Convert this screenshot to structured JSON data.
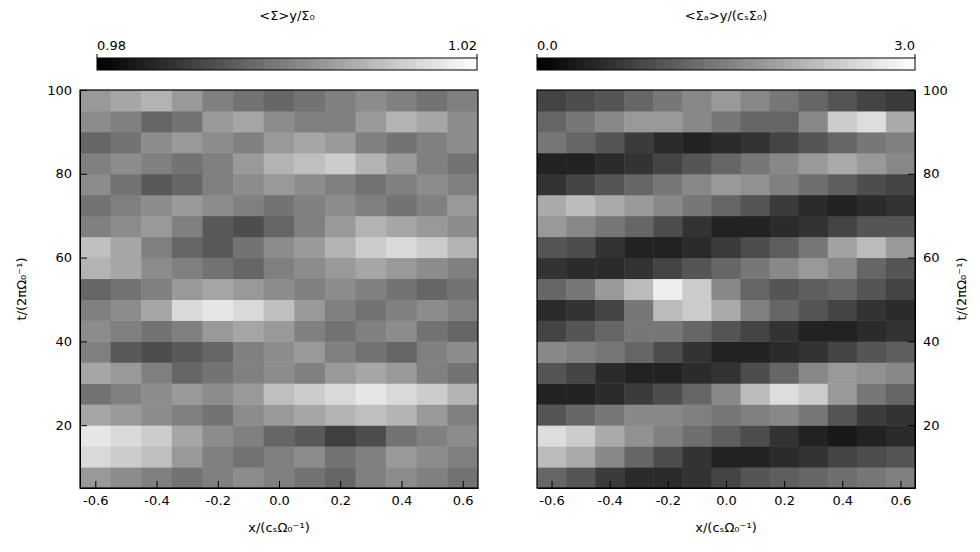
{
  "chart_data": [
    {
      "type": "heatmap",
      "xlabel": "x/(cₛΩ₀⁻¹)",
      "ylabel": "t/(2πΩ₀⁻¹)",
      "xlim": [
        -0.65,
        0.65
      ],
      "ylim": [
        5,
        100
      ],
      "xticks": [
        -0.6,
        -0.4,
        -0.2,
        {
          "value": 0,
          "label": "0.0"
        },
        0.2,
        0.4,
        0.6
      ],
      "yticks": [
        20,
        40,
        60,
        80,
        100
      ],
      "x": [
        -0.6,
        -0.5,
        -0.4,
        -0.3,
        -0.2,
        -0.1,
        0,
        0.1,
        0.2,
        0.3,
        0.4,
        0.5,
        0.6
      ],
      "y": [
        7.5,
        12.5,
        17.5,
        22.5,
        27.5,
        32.5,
        37.5,
        42.5,
        47.5,
        52.5,
        57.5,
        62.5,
        67.5,
        72.5,
        77.5,
        82.5,
        87.5,
        92.5,
        97.5
      ],
      "z": [
        [
          1.004,
          1.002,
          1.0,
          0.998,
          1.0,
          1.002,
          1.0,
          0.998,
          0.996,
          1.0,
          1.002,
          1.0,
          0.998
        ],
        [
          1.014,
          1.012,
          1.01,
          1.004,
          1.0,
          0.998,
          1.0,
          1.002,
          0.998,
          1.0,
          1.004,
          1.002,
          1.0
        ],
        [
          1.016,
          1.014,
          1.012,
          1.006,
          1.002,
          1.0,
          0.996,
          0.994,
          0.99,
          0.992,
          0.998,
          1.0,
          1.002
        ],
        [
          1.006,
          1.004,
          1.002,
          1.0,
          0.998,
          1.002,
          1.004,
          1.006,
          1.008,
          1.01,
          1.008,
          1.004,
          1.0
        ],
        [
          0.998,
          1.0,
          1.002,
          1.004,
          1.002,
          1.004,
          1.01,
          1.012,
          1.014,
          1.016,
          1.014,
          1.012,
          1.008
        ],
        [
          1.006,
          1.004,
          1.0,
          0.996,
          0.998,
          1.0,
          1.002,
          1.0,
          1.004,
          1.006,
          1.004,
          1.0,
          0.998
        ],
        [
          1.0,
          0.994,
          0.992,
          0.994,
          0.996,
          1.0,
          1.002,
          1.004,
          1.0,
          0.998,
          0.996,
          1.0,
          1.002
        ],
        [
          1.002,
          1.0,
          0.998,
          1.0,
          1.004,
          1.006,
          1.004,
          1.0,
          0.998,
          1.0,
          1.002,
          0.998,
          0.996
        ],
        [
          1.0,
          1.002,
          1.006,
          1.014,
          1.016,
          1.014,
          1.01,
          1.004,
          1.0,
          0.998,
          1.0,
          1.002,
          1.0
        ],
        [
          0.996,
          0.998,
          1.0,
          1.004,
          1.006,
          1.004,
          1.002,
          1.0,
          1.002,
          1.0,
          0.998,
          0.996,
          0.998
        ],
        [
          1.008,
          1.006,
          1.002,
          1.0,
          0.998,
          0.996,
          1.0,
          1.002,
          1.004,
          1.006,
          1.004,
          1.002,
          1.0
        ],
        [
          1.01,
          1.006,
          1.0,
          0.996,
          0.994,
          0.998,
          1.002,
          1.004,
          1.008,
          1.012,
          1.014,
          1.012,
          1.008
        ],
        [
          1.0,
          1.002,
          1.004,
          1.0,
          0.994,
          0.992,
          0.996,
          1.0,
          1.004,
          1.008,
          1.006,
          1.004,
          1.002
        ],
        [
          0.998,
          1.0,
          1.002,
          1.004,
          1.002,
          1.0,
          0.998,
          1.0,
          1.002,
          1.0,
          0.998,
          1.0,
          1.004
        ],
        [
          1.002,
          0.998,
          0.994,
          0.996,
          1.0,
          1.002,
          1.004,
          1.002,
          1.0,
          0.998,
          1.0,
          1.002,
          1.0
        ],
        [
          1.0,
          1.002,
          1.0,
          0.998,
          1.0,
          1.004,
          1.008,
          1.01,
          1.012,
          1.008,
          1.004,
          1.0,
          0.998
        ],
        [
          0.996,
          0.998,
          1.002,
          1.004,
          1.002,
          1.0,
          1.004,
          1.006,
          1.004,
          1.0,
          0.998,
          1.0,
          1.002
        ],
        [
          1.002,
          1.0,
          0.996,
          0.998,
          1.004,
          1.006,
          1.002,
          1.0,
          1.0,
          1.004,
          1.008,
          1.006,
          1.002
        ],
        [
          1.004,
          1.006,
          1.008,
          1.004,
          1.0,
          0.998,
          0.996,
          0.998,
          1.0,
          1.002,
          1.0,
          0.998,
          1.0
        ]
      ],
      "zlabel": "<Σ>y/Σ₀",
      "zlim": [
        0.98,
        1.02
      ],
      "zticks": [
        0.98,
        1.02
      ]
    },
    {
      "type": "heatmap",
      "xlabel": "x/(cₛΩ₀⁻¹)",
      "ylabel": "t/(2πΩ₀⁻¹)",
      "xlim": [
        -0.65,
        0.65
      ],
      "ylim": [
        5,
        100
      ],
      "xticks": [
        -0.6,
        -0.4,
        -0.2,
        {
          "value": 0,
          "label": "0.0"
        },
        0.2,
        0.4,
        0.6
      ],
      "yticks": [
        20,
        40,
        60,
        80,
        100
      ],
      "x": [
        -0.6,
        -0.5,
        -0.4,
        -0.3,
        -0.2,
        -0.1,
        0,
        0.1,
        0.2,
        0.3,
        0.4,
        0.5,
        0.6
      ],
      "y": [
        7.5,
        12.5,
        17.5,
        22.5,
        27.5,
        32.5,
        37.5,
        42.5,
        47.5,
        52.5,
        57.5,
        62.5,
        67.5,
        72.5,
        77.5,
        82.5,
        87.5,
        92.5,
        97.5
      ],
      "z": [
        [
          1.2,
          1.0,
          0.7,
          0.5,
          0.5,
          0.6,
          0.8,
          1.0,
          1.1,
          1.2,
          1.3,
          1.4,
          1.5
        ],
        [
          2.2,
          2.0,
          1.6,
          1.2,
          0.9,
          0.6,
          0.4,
          0.4,
          0.5,
          0.6,
          0.8,
          0.9,
          1.0
        ],
        [
          2.6,
          2.4,
          2.0,
          1.7,
          1.5,
          1.3,
          1.1,
          0.9,
          0.6,
          0.4,
          0.3,
          0.4,
          0.5
        ],
        [
          1.0,
          1.2,
          1.4,
          1.6,
          1.6,
          1.5,
          1.4,
          1.5,
          1.6,
          1.4,
          1.0,
          0.7,
          0.6
        ],
        [
          0.4,
          0.4,
          0.5,
          0.7,
          0.9,
          1.2,
          1.6,
          2.2,
          2.6,
          2.4,
          1.8,
          1.4,
          1.2
        ],
        [
          1.0,
          0.8,
          0.5,
          0.4,
          0.4,
          0.5,
          0.6,
          0.9,
          1.2,
          1.6,
          1.8,
          1.7,
          1.6
        ],
        [
          1.6,
          1.5,
          1.4,
          1.2,
          0.9,
          0.6,
          0.4,
          0.4,
          0.5,
          0.6,
          0.8,
          1.0,
          1.1
        ],
        [
          0.8,
          1.0,
          1.2,
          1.4,
          1.4,
          1.2,
          1.0,
          0.8,
          0.6,
          0.4,
          0.4,
          0.5,
          0.6
        ],
        [
          0.5,
          0.6,
          0.8,
          1.4,
          2.2,
          2.4,
          2.0,
          1.5,
          1.2,
          1.0,
          0.8,
          0.6,
          0.5
        ],
        [
          1.2,
          1.4,
          1.8,
          2.2,
          2.8,
          2.4,
          1.6,
          1.2,
          1.0,
          1.1,
          1.2,
          1.0,
          0.8
        ],
        [
          0.6,
          0.5,
          0.5,
          0.6,
          0.8,
          1.0,
          1.2,
          1.4,
          1.6,
          1.8,
          1.6,
          1.2,
          1.0
        ],
        [
          1.0,
          0.9,
          0.6,
          0.4,
          0.4,
          0.5,
          0.7,
          0.9,
          1.1,
          1.4,
          1.9,
          2.2,
          1.8
        ],
        [
          1.8,
          1.6,
          1.4,
          1.2,
          0.9,
          0.6,
          0.4,
          0.4,
          0.5,
          0.6,
          0.8,
          1.0,
          1.0
        ],
        [
          2.0,
          2.2,
          2.0,
          1.8,
          1.6,
          1.4,
          1.2,
          1.0,
          0.7,
          0.5,
          0.4,
          0.5,
          0.6
        ],
        [
          0.6,
          0.8,
          1.0,
          1.2,
          1.4,
          1.6,
          1.8,
          1.7,
          1.5,
          1.3,
          1.1,
          0.9,
          0.8
        ],
        [
          0.4,
          0.4,
          0.5,
          0.6,
          0.8,
          1.0,
          1.2,
          1.4,
          1.6,
          1.8,
          2.0,
          1.8,
          1.6
        ],
        [
          1.4,
          1.2,
          1.0,
          0.7,
          0.5,
          0.4,
          0.5,
          0.6,
          0.8,
          1.0,
          1.2,
          1.4,
          1.5
        ],
        [
          1.2,
          1.4,
          1.6,
          1.8,
          1.8,
          1.6,
          1.4,
          1.2,
          1.2,
          1.6,
          2.4,
          2.6,
          2.0
        ],
        [
          0.8,
          0.9,
          1.0,
          1.2,
          1.4,
          1.6,
          1.8,
          1.6,
          1.4,
          1.2,
          1.0,
          0.8,
          0.7
        ]
      ],
      "zlabel": "<Σₐ>y/(cₛΣ₀)",
      "zlim": [
        0,
        3
      ],
      "zticks": [
        {
          "value": 0,
          "label": "0.0"
        },
        {
          "value": 3,
          "label": "3.0"
        }
      ]
    }
  ]
}
